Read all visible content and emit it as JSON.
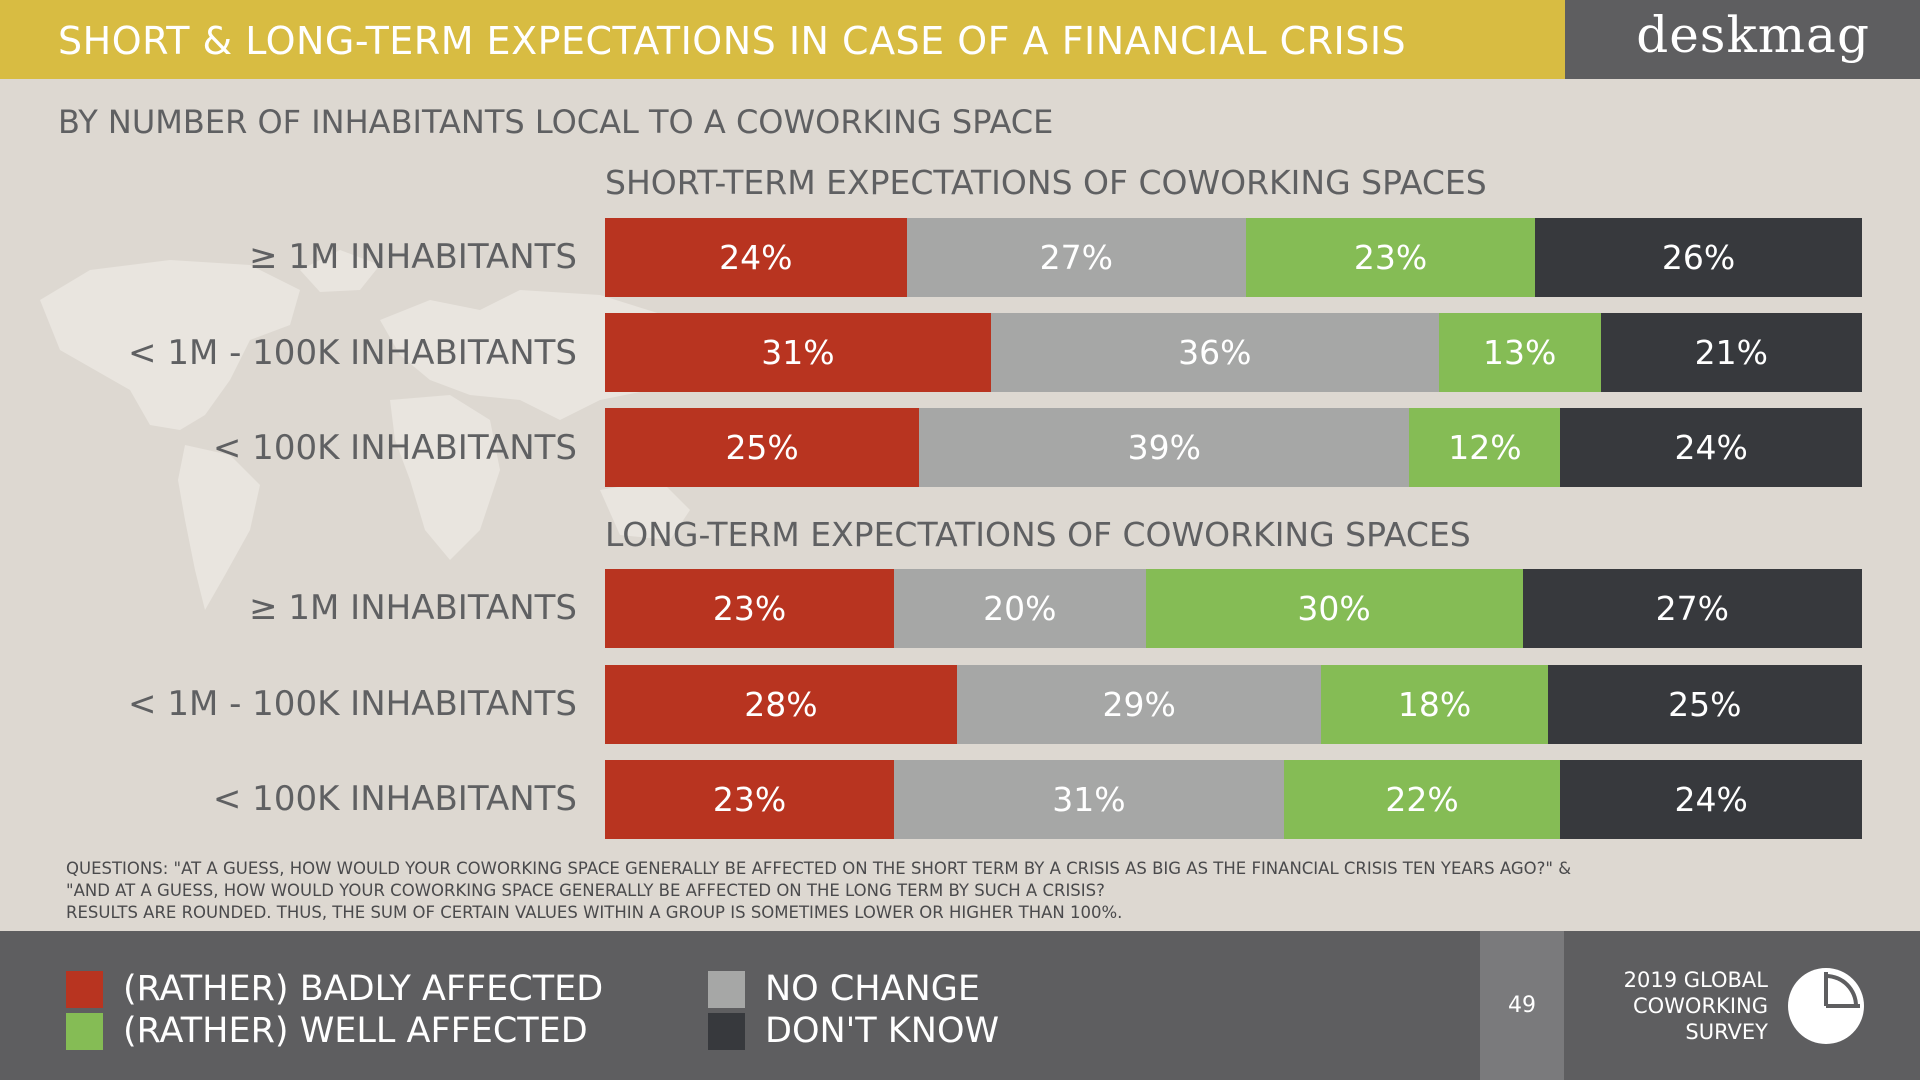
{
  "header": {
    "title": "SHORT & LONG-TERM EXPECTATIONS IN CASE OF A FINANCIAL CRISIS",
    "brand": "deskmag"
  },
  "subtitle": "BY NUMBER OF INHABITANTS LOCAL TO A COWORKING SPACE",
  "colors": {
    "badly_affected": "#b83420",
    "no_change": "#a6a7a6",
    "well_affected": "#85bc55",
    "dont_know": "#37393d",
    "title_bar": "#d8bc42",
    "background": "#ddd8d1",
    "footer": "#5e5e60"
  },
  "chart_data": [
    {
      "type": "bar",
      "orientation": "horizontal",
      "stacked": true,
      "title": "SHORT-TERM EXPECTATIONS OF COWORKING SPACES",
      "unit": "%",
      "categories": [
        "≥ 1M INHABITANTS",
        "< 1M - 100K INHABITANTS",
        "< 100K INHABITANTS"
      ],
      "series": [
        {
          "name": "(RATHER) BADLY AFFECTED",
          "values": [
            24,
            31,
            25
          ]
        },
        {
          "name": "NO CHANGE",
          "values": [
            27,
            36,
            39
          ]
        },
        {
          "name": "(RATHER) WELL AFFECTED",
          "values": [
            23,
            13,
            12
          ]
        },
        {
          "name": "DON'T KNOW",
          "values": [
            26,
            21,
            24
          ]
        }
      ]
    },
    {
      "type": "bar",
      "orientation": "horizontal",
      "stacked": true,
      "title": "LONG-TERM EXPECTATIONS OF COWORKING SPACES",
      "unit": "%",
      "categories": [
        "≥ 1M INHABITANTS",
        "< 1M - 100K INHABITANTS",
        "< 100K INHABITANTS"
      ],
      "series": [
        {
          "name": "(RATHER) BADLY AFFECTED",
          "values": [
            23,
            28,
            23
          ]
        },
        {
          "name": "NO CHANGE",
          "values": [
            20,
            29,
            31
          ]
        },
        {
          "name": "(RATHER) WELL AFFECTED",
          "values": [
            30,
            18,
            22
          ]
        },
        {
          "name": "DON'T KNOW",
          "values": [
            27,
            25,
            24
          ]
        }
      ]
    }
  ],
  "notes": [
    "QUESTIONS: \"AT A GUESS, HOW WOULD YOUR COWORKING SPACE GENERALLY BE AFFECTED ON THE SHORT TERM BY A CRISIS AS BIG AS THE FINANCIAL CRISIS TEN YEARS AGO?\" &",
    "\"AND AT A GUESS, HOW WOULD YOUR COWORKING SPACE GENERALLY BE AFFECTED ON THE LONG TERM BY SUCH A CRISIS?",
    "RESULTS ARE ROUNDED. THUS, THE SUM OF CERTAIN VALUES WITHIN A GROUP IS SOMETIMES LOWER OR HIGHER THAN 100%."
  ],
  "legend": [
    {
      "label": "(RATHER) BADLY AFFECTED",
      "color": "#b83420"
    },
    {
      "label": "(RATHER) WELL AFFECTED",
      "color": "#85bc55"
    },
    {
      "label": "NO CHANGE",
      "color": "#a6a7a6"
    },
    {
      "label": "DON'T KNOW",
      "color": "#37393d"
    }
  ],
  "footer": {
    "page_number": "49",
    "survey_lines": [
      "2019 GLOBAL",
      "COWORKING",
      "SURVEY"
    ],
    "logo_icon": "pie-chart-icon"
  }
}
